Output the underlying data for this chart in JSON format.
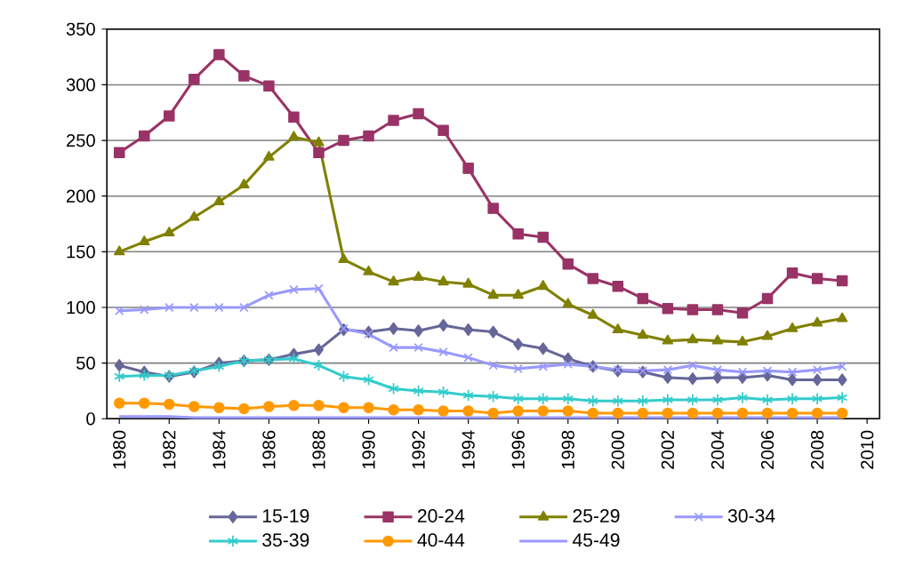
{
  "chart_data": {
    "type": "line",
    "x": [
      1980,
      1981,
      1982,
      1983,
      1984,
      1985,
      1986,
      1987,
      1988,
      1989,
      1990,
      1991,
      1992,
      1993,
      1994,
      1995,
      1996,
      1997,
      1998,
      1999,
      2000,
      2001,
      2002,
      2003,
      2004,
      2005,
      2006,
      2007,
      2008,
      2009
    ],
    "xlim": [
      1979.5,
      2010.5
    ],
    "xticks": [
      1980,
      1982,
      1984,
      1986,
      1988,
      1990,
      1992,
      1994,
      1996,
      1998,
      2000,
      2002,
      2004,
      2006,
      2008,
      2010
    ],
    "ylim": [
      0,
      350
    ],
    "yticks": [
      0,
      50,
      100,
      150,
      200,
      250,
      300,
      350
    ],
    "grid": "y",
    "legend": "bottom",
    "series": [
      {
        "name": "15-19",
        "color": "#666699",
        "marker": "diamond",
        "values": [
          48,
          42,
          38,
          42,
          50,
          52,
          53,
          58,
          62,
          80,
          78,
          81,
          79,
          84,
          80,
          78,
          67,
          63,
          54,
          47,
          43,
          42,
          37,
          36,
          37,
          37,
          39,
          35,
          35,
          35
        ]
      },
      {
        "name": "20-24",
        "color": "#993366",
        "marker": "square",
        "values": [
          239,
          254,
          272,
          305,
          327,
          308,
          299,
          271,
          239,
          250,
          254,
          268,
          274,
          259,
          225,
          189,
          166,
          163,
          139,
          126,
          119,
          108,
          99,
          98,
          98,
          95,
          108,
          131,
          126,
          124
        ]
      },
      {
        "name": "25-29",
        "color": "#808000",
        "marker": "triangle",
        "values": [
          150,
          159,
          167,
          181,
          195,
          210,
          235,
          253,
          248,
          143,
          132,
          123,
          127,
          123,
          121,
          111,
          111,
          119,
          103,
          93,
          80,
          75,
          70,
          71,
          70,
          69,
          74,
          81,
          86,
          90
        ]
      },
      {
        "name": "30-34",
        "color": "#9999ff",
        "marker": "cross",
        "values": [
          97,
          98,
          100,
          100,
          100,
          100,
          111,
          116,
          117,
          81,
          76,
          64,
          64,
          60,
          55,
          48,
          45,
          47,
          49,
          47,
          44,
          43,
          44,
          48,
          44,
          42,
          43,
          42,
          44,
          47
        ]
      },
      {
        "name": "35-39",
        "color": "#33cccc",
        "marker": "cross",
        "values": [
          38,
          39,
          39,
          43,
          47,
          52,
          53,
          54,
          48,
          38,
          35,
          27,
          25,
          24,
          21,
          20,
          18,
          18,
          18,
          16,
          16,
          16,
          17,
          17,
          17,
          19,
          17,
          18,
          18,
          19
        ]
      },
      {
        "name": "40-44",
        "color": "#ff9900",
        "marker": "circle",
        "values": [
          14,
          14,
          13,
          11,
          10,
          9,
          11,
          12,
          12,
          10,
          10,
          8,
          8,
          7,
          7,
          5,
          7,
          7,
          7,
          5,
          5,
          5,
          5,
          5,
          5,
          5,
          5,
          5,
          5,
          5
        ]
      },
      {
        "name": "45-49",
        "color": "#9999ff",
        "marker": "none",
        "values": [
          2,
          2,
          2,
          1,
          1,
          1,
          1,
          1,
          1,
          1,
          1,
          1,
          1,
          1,
          1,
          1,
          1,
          1,
          1,
          1,
          1,
          1,
          1,
          1,
          1,
          1,
          1,
          1,
          1,
          1
        ]
      }
    ]
  }
}
